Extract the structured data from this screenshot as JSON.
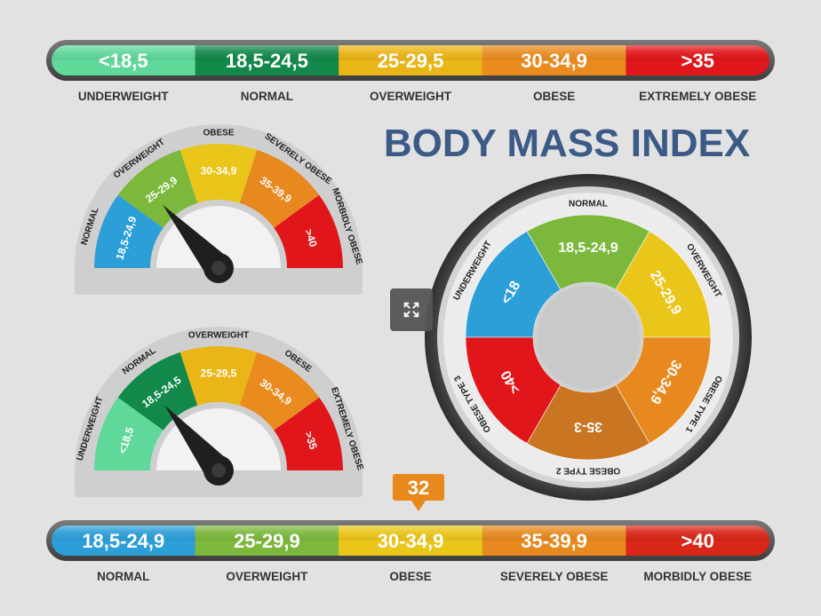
{
  "title": "BODY MASS INDEX",
  "top_bar": {
    "segments": [
      {
        "value": "<18,5",
        "label": "UNDERWEIGHT",
        "color": "#5fd89a"
      },
      {
        "value": "18,5-24,5",
        "label": "NORMAL",
        "color": "#12884a"
      },
      {
        "value": "25-29,5",
        "label": "OVERWEIGHT",
        "color": "#eab517"
      },
      {
        "value": "30-34,9",
        "label": "OBESE",
        "color": "#ea8b1f"
      },
      {
        "value": ">35",
        "label": "EXTREMELY OBESE",
        "color": "#e0161a"
      }
    ]
  },
  "bottom_bar": {
    "marker": "32",
    "marker_color": "#e9881c",
    "segments": [
      {
        "value": "18,5-24,9",
        "label": "NORMAL",
        "color": "#2c9fd8"
      },
      {
        "value": "25-29,9",
        "label": "OVERWEIGHT",
        "color": "#7cb83c"
      },
      {
        "value": "30-34,9",
        "label": "OBESE",
        "color": "#eac51a"
      },
      {
        "value": "35-39,9",
        "label": "SEVERELY OBESE",
        "color": "#e7891f"
      },
      {
        "value": ">40",
        "label": "MORBIDLY OBESE",
        "color": "#d92618"
      }
    ]
  },
  "gauge_top": {
    "needle_fraction": 0.27,
    "segments": [
      {
        "value": "18,5-24,9",
        "label": "NORMAL",
        "color": "#2c9fd8"
      },
      {
        "value": "25-29,9",
        "label": "OVERWEIGHT",
        "color": "#7cb83c"
      },
      {
        "value": "30-34,9",
        "label": "OBESE",
        "color": "#eac51a"
      },
      {
        "value": "35-39,9",
        "label": "SEVERELY OBESE",
        "color": "#e7891f"
      },
      {
        "value": ">40",
        "label": "MORBIDLY OBESE",
        "color": "#e0161a"
      }
    ]
  },
  "gauge_bottom": {
    "needle_fraction": 0.28,
    "segments": [
      {
        "value": "<18,5",
        "label": "UNDERWEIGHT",
        "color": "#5fd89a"
      },
      {
        "value": "18,5-24,5",
        "label": "NORMAL",
        "color": "#12884a"
      },
      {
        "value": "25-29,5",
        "label": "OVERWEIGHT",
        "color": "#eab517"
      },
      {
        "value": "30-34,9",
        "label": "OBESE",
        "color": "#ea8b1f"
      },
      {
        "value": ">35",
        "label": "EXTREMELY OBESE",
        "color": "#e0161a"
      }
    ]
  },
  "dial": {
    "segments": [
      {
        "value": "<18",
        "label": "UNDERWEIGHT",
        "color": "#2c9fd8"
      },
      {
        "value": "18,5-24,9",
        "label": "NORMAL",
        "color": "#7cb83c"
      },
      {
        "value": "25-29,9",
        "label": "OVERWEIGHT",
        "color": "#eac51a"
      },
      {
        "value": "30-34,9",
        "label": "OBESE TYPE 1",
        "color": "#e7891f"
      },
      {
        "value": "35-3",
        "label": "OBESE TYPE 2",
        "color": "#c97521"
      },
      {
        "value": ">40",
        "label": "OBESE TYPE 3",
        "color": "#e0161a"
      }
    ]
  },
  "ui": {
    "expand_icon": "expand-icon"
  }
}
